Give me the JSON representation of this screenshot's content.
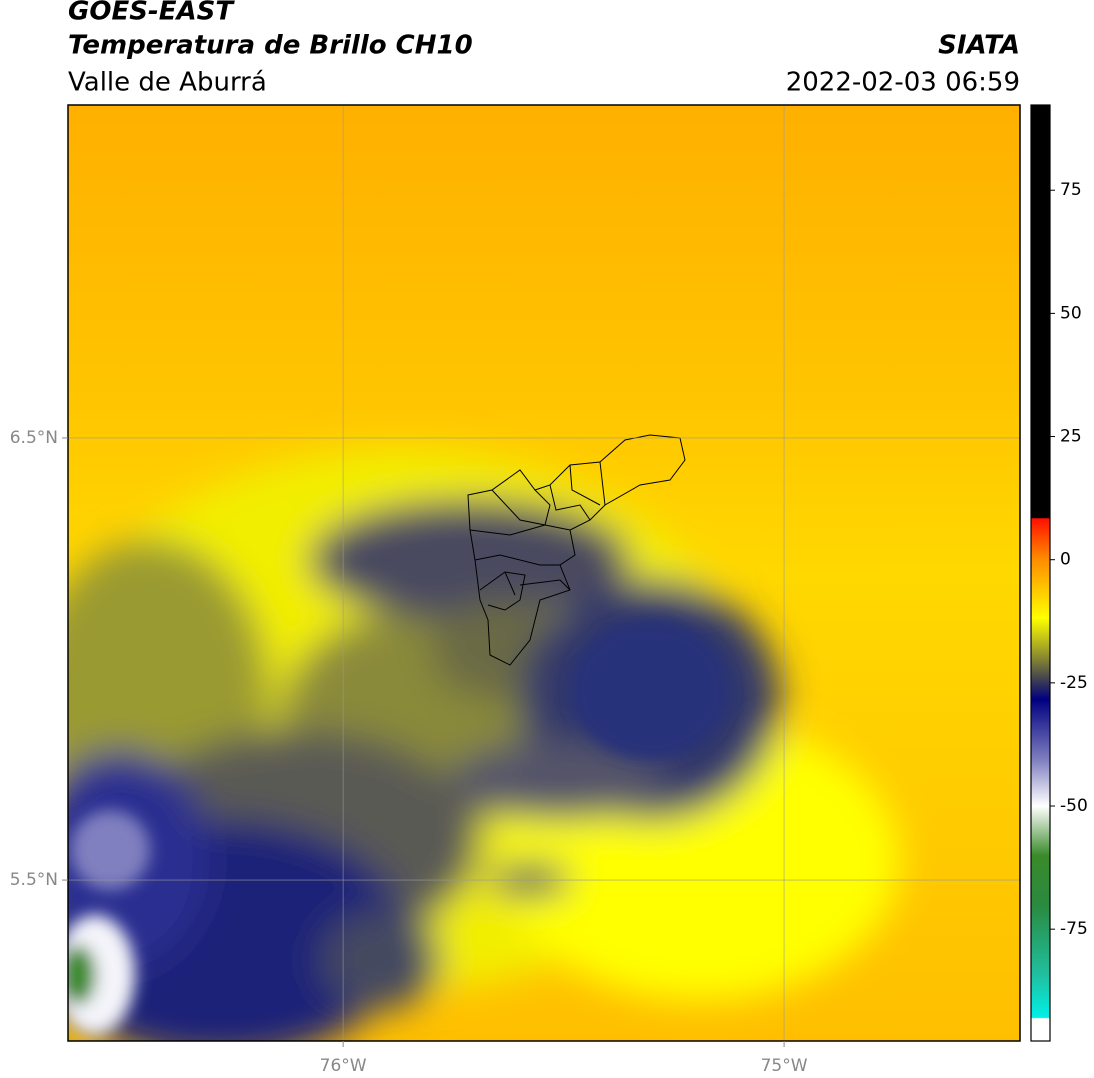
{
  "header": {
    "title": "GOES-EAST",
    "subtitle": "Temperatura de Brillo CH10",
    "region": "Valle de Aburrá",
    "source": "SIATA",
    "datetime": "2022-02-03 06:59"
  },
  "map": {
    "xlim": [
      -76.624,
      -74.465
    ],
    "ylim": [
      5.136,
      7.253
    ],
    "xticks": [
      {
        "value": -76,
        "label": "76°W"
      },
      {
        "value": -75,
        "label": "75°W"
      }
    ],
    "yticks": [
      {
        "value": 5.5,
        "label": "5.5°N"
      },
      {
        "value": 6.5,
        "label": "6.5°N"
      }
    ],
    "grid": true
  },
  "colorbar": {
    "lim": [
      -97.7,
      92.3
    ],
    "ticks": [
      -75,
      -50,
      -25,
      0,
      25,
      50,
      75
    ]
  }
}
